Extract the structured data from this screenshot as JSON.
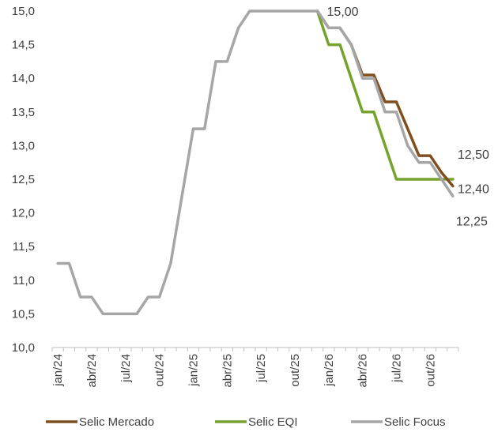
{
  "chart_data": {
    "type": "line",
    "ylim": [
      10.0,
      15.0
    ],
    "yticks": [
      "10,0",
      "10,5",
      "11,0",
      "11,5",
      "12,0",
      "12,5",
      "13,0",
      "13,5",
      "14,0",
      "14,5",
      "15,0"
    ],
    "xticks": [
      "jan/24",
      "abr/24",
      "jul/24",
      "out/24",
      "jan/25",
      "abr/25",
      "jul/25",
      "out/25",
      "jan/26",
      "abr/26",
      "jul/26",
      "out/26"
    ],
    "x": [
      "jan/24",
      "fev/24",
      "mar/24",
      "abr/24",
      "mai/24",
      "jun/24",
      "jul/24",
      "ago/24",
      "set/24",
      "out/24",
      "nov/24",
      "dez/24",
      "jan/25",
      "fev/25",
      "mar/25",
      "abr/25",
      "mai/25",
      "jun/25",
      "jul/25",
      "ago/25",
      "set/25",
      "out/25",
      "nov/25",
      "dez/25",
      "jan/26",
      "fev/26",
      "mar/26",
      "abr/26",
      "mai/26",
      "jun/26",
      "jul/26",
      "ago/26",
      "set/26",
      "out/26",
      "nov/26",
      "dez/26"
    ],
    "grid": false,
    "legend_position": "bottom",
    "series": [
      {
        "name": "Selic Mercado",
        "color": "#7f4f1f",
        "values": [
          null,
          null,
          null,
          null,
          null,
          null,
          null,
          null,
          null,
          null,
          null,
          null,
          null,
          null,
          null,
          null,
          null,
          null,
          null,
          null,
          null,
          null,
          null,
          15.0,
          14.75,
          14.75,
          14.5,
          14.05,
          14.05,
          13.65,
          13.65,
          13.25,
          12.85,
          12.85,
          12.6,
          12.4
        ]
      },
      {
        "name": "Selic EQI",
        "color": "#76a22e",
        "values": [
          null,
          null,
          null,
          null,
          null,
          null,
          null,
          null,
          null,
          null,
          null,
          null,
          null,
          null,
          null,
          null,
          null,
          null,
          null,
          null,
          null,
          null,
          null,
          15.0,
          14.5,
          14.5,
          14.0,
          13.5,
          13.5,
          13.0,
          12.5,
          12.5,
          12.5,
          12.5,
          12.5,
          12.5
        ]
      },
      {
        "name": "Selic Focus",
        "color": "#a6a6a6",
        "values": [
          11.25,
          11.25,
          10.75,
          10.75,
          10.5,
          10.5,
          10.5,
          10.5,
          10.75,
          10.75,
          11.25,
          12.25,
          13.25,
          13.25,
          14.25,
          14.25,
          14.75,
          15.0,
          15.0,
          15.0,
          15.0,
          15.0,
          15.0,
          15.0,
          14.75,
          14.75,
          14.5,
          14.0,
          14.0,
          13.5,
          13.5,
          13.0,
          12.75,
          12.75,
          12.5,
          12.25
        ]
      }
    ],
    "annotations": [
      {
        "text": "15,00",
        "series": "Selic Mercado",
        "at": "dez/25"
      },
      {
        "text": "12,50",
        "series": "Selic EQI",
        "at": "dez/26"
      },
      {
        "text": "12,40",
        "series": "Selic Mercado",
        "at": "dez/26"
      },
      {
        "text": "12,25",
        "series": "Selic Focus",
        "at": "dez/26"
      }
    ]
  }
}
